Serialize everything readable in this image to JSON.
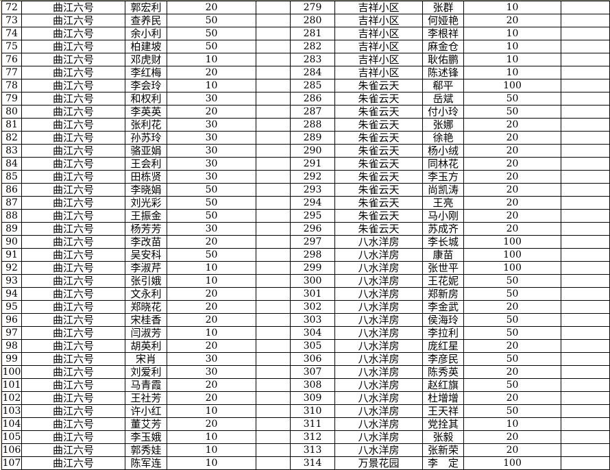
{
  "colors": {
    "grid_line": "#000000",
    "background": "#ffffff",
    "left_margin_strip": "#eeeadb",
    "top_edge_line": "#8f8f7c",
    "text": "#000000"
  },
  "rows": [
    {
      "left": {
        "no": "72",
        "community": "曲江六号",
        "name": "郭宏利",
        "amount": "20"
      },
      "right": {
        "no": "279",
        "community": "吉祥小区",
        "name": "张群",
        "amount": "10"
      }
    },
    {
      "left": {
        "no": "73",
        "community": "曲江六号",
        "name": "查养民",
        "amount": "50"
      },
      "right": {
        "no": "280",
        "community": "吉祥小区",
        "name": "何娅艳",
        "amount": "20"
      }
    },
    {
      "left": {
        "no": "74",
        "community": "曲江六号",
        "name": "余小利",
        "amount": "50"
      },
      "right": {
        "no": "281",
        "community": "吉祥小区",
        "name": "李根祥",
        "amount": "10"
      }
    },
    {
      "left": {
        "no": "75",
        "community": "曲江六号",
        "name": "柏建坡",
        "amount": "50"
      },
      "right": {
        "no": "282",
        "community": "吉祥小区",
        "name": "麻金仓",
        "amount": "10"
      }
    },
    {
      "left": {
        "no": "76",
        "community": "曲江六号",
        "name": "邓虎财",
        "amount": "10"
      },
      "right": {
        "no": "283",
        "community": "吉祥小区",
        "name": "耿佑鹏",
        "amount": "10"
      }
    },
    {
      "left": {
        "no": "77",
        "community": "曲江六号",
        "name": "李红梅",
        "amount": "20"
      },
      "right": {
        "no": "284",
        "community": "吉祥小区",
        "name": "陈述锋",
        "amount": "10"
      }
    },
    {
      "left": {
        "no": "78",
        "community": "曲江六号",
        "name": "李会玲",
        "amount": "10"
      },
      "right": {
        "no": "285",
        "community": "朱雀云天",
        "name": "郗平",
        "amount": "100"
      }
    },
    {
      "left": {
        "no": "79",
        "community": "曲江六号",
        "name": "和权利",
        "amount": "30"
      },
      "right": {
        "no": "286",
        "community": "朱雀云天",
        "name": "岳斌",
        "amount": "50"
      }
    },
    {
      "left": {
        "no": "80",
        "community": "曲江六号",
        "name": "李英英",
        "amount": "20"
      },
      "right": {
        "no": "287",
        "community": "朱雀云天",
        "name": "付小玲",
        "amount": "50"
      }
    },
    {
      "left": {
        "no": "81",
        "community": "曲江六号",
        "name": "张利花",
        "amount": "30"
      },
      "right": {
        "no": "288",
        "community": "朱雀云天",
        "name": "张娜",
        "amount": "20"
      }
    },
    {
      "left": {
        "no": "82",
        "community": "曲江六号",
        "name": "孙苏玲",
        "amount": "30"
      },
      "right": {
        "no": "289",
        "community": "朱雀云天",
        "name": "徐艳",
        "amount": "20"
      }
    },
    {
      "left": {
        "no": "83",
        "community": "曲江六号",
        "name": "骆亚娟",
        "amount": "30"
      },
      "right": {
        "no": "290",
        "community": "朱雀云天",
        "name": "杨小绒",
        "amount": "20"
      }
    },
    {
      "left": {
        "no": "84",
        "community": "曲江六号",
        "name": "王会利",
        "amount": "30"
      },
      "right": {
        "no": "291",
        "community": "朱雀云天",
        "name": "同林花",
        "amount": "20"
      }
    },
    {
      "left": {
        "no": "85",
        "community": "曲江六号",
        "name": "田栋贤",
        "amount": "30"
      },
      "right": {
        "no": "292",
        "community": "朱雀云天",
        "name": "李玉方",
        "amount": "20"
      }
    },
    {
      "left": {
        "no": "86",
        "community": "曲江六号",
        "name": "李晓娟",
        "amount": "50"
      },
      "right": {
        "no": "293",
        "community": "朱雀云天",
        "name": "尚凯涛",
        "amount": "20"
      }
    },
    {
      "left": {
        "no": "87",
        "community": "曲江六号",
        "name": "刘光彩",
        "amount": "50"
      },
      "right": {
        "no": "294",
        "community": "朱雀云天",
        "name": "王亮",
        "amount": "20"
      }
    },
    {
      "left": {
        "no": "88",
        "community": "曲江六号",
        "name": "王振金",
        "amount": "50"
      },
      "right": {
        "no": "295",
        "community": "朱雀云天",
        "name": "马小刚",
        "amount": "20"
      }
    },
    {
      "left": {
        "no": "89",
        "community": "曲江六号",
        "name": "杨芳芳",
        "amount": "30"
      },
      "right": {
        "no": "296",
        "community": "朱雀云天",
        "name": "苏成齐",
        "amount": "20"
      }
    },
    {
      "left": {
        "no": "90",
        "community": "曲江六号",
        "name": "李改苗",
        "amount": "20"
      },
      "right": {
        "no": "297",
        "community": "八水洋房",
        "name": "李长城",
        "amount": "100"
      }
    },
    {
      "left": {
        "no": "91",
        "community": "曲江六号",
        "name": "吴安科",
        "amount": "50"
      },
      "right": {
        "no": "298",
        "community": "八水洋房",
        "name": "康苗",
        "amount": "100"
      }
    },
    {
      "left": {
        "no": "92",
        "community": "曲江六号",
        "name": "李淑芹",
        "amount": "10"
      },
      "right": {
        "no": "299",
        "community": "八水洋房",
        "name": "张世平",
        "amount": "100"
      }
    },
    {
      "left": {
        "no": "93",
        "community": "曲江六号",
        "name": "张引娥",
        "amount": "10"
      },
      "right": {
        "no": "300",
        "community": "八水洋房",
        "name": "王花妮",
        "amount": "50"
      }
    },
    {
      "left": {
        "no": "94",
        "community": "曲江六号",
        "name": "文永利",
        "amount": "20"
      },
      "right": {
        "no": "301",
        "community": "八水洋房",
        "name": "郑新房",
        "amount": "50"
      }
    },
    {
      "left": {
        "no": "95",
        "community": "曲江六号",
        "name": "郑晓花",
        "amount": "20"
      },
      "right": {
        "no": "302",
        "community": "八水洋房",
        "name": "李金武",
        "amount": "20"
      }
    },
    {
      "left": {
        "no": "96",
        "community": "曲江六号",
        "name": "宋桂香",
        "amount": "20"
      },
      "right": {
        "no": "303",
        "community": "八水洋房",
        "name": "侯海玲",
        "amount": "50"
      }
    },
    {
      "left": {
        "no": "97",
        "community": "曲江六号",
        "name": "闫淑芳",
        "amount": "10"
      },
      "right": {
        "no": "304",
        "community": "八水洋房",
        "name": "李拉利",
        "amount": "50"
      }
    },
    {
      "left": {
        "no": "98",
        "community": "曲江六号",
        "name": "胡英利",
        "amount": "20"
      },
      "right": {
        "no": "305",
        "community": "八水洋房",
        "name": "庞红星",
        "amount": "20"
      }
    },
    {
      "left": {
        "no": "99",
        "community": "曲江六号",
        "name": "宋肖",
        "amount": "30"
      },
      "right": {
        "no": "306",
        "community": "八水洋房",
        "name": "李彦民",
        "amount": "50"
      }
    },
    {
      "left": {
        "no": "100",
        "community": "曲江六号",
        "name": "刘爱利",
        "amount": "30"
      },
      "right": {
        "no": "307",
        "community": "八水洋房",
        "name": "陈秀英",
        "amount": "20"
      }
    },
    {
      "left": {
        "no": "101",
        "community": "曲江六号",
        "name": "马青霞",
        "amount": "20"
      },
      "right": {
        "no": "308",
        "community": "八水洋房",
        "name": "赵红旗",
        "amount": "50"
      }
    },
    {
      "left": {
        "no": "102",
        "community": "曲江六号",
        "name": "王社芳",
        "amount": "20"
      },
      "right": {
        "no": "309",
        "community": "八水洋房",
        "name": "杜增增",
        "amount": "20"
      }
    },
    {
      "left": {
        "no": "103",
        "community": "曲江六号",
        "name": "许小红",
        "amount": "10"
      },
      "right": {
        "no": "310",
        "community": "八水洋房",
        "name": "王天祥",
        "amount": "50"
      }
    },
    {
      "left": {
        "no": "104",
        "community": "曲江六号",
        "name": "董艾芳",
        "amount": "20"
      },
      "right": {
        "no": "311",
        "community": "八水洋房",
        "name": "党拴其",
        "amount": "10"
      }
    },
    {
      "left": {
        "no": "105",
        "community": "曲江六号",
        "name": "李玉娥",
        "amount": "10"
      },
      "right": {
        "no": "312",
        "community": "八水洋房",
        "name": "张毅",
        "amount": "20"
      }
    },
    {
      "left": {
        "no": "106",
        "community": "曲江六号",
        "name": "郭秀娃",
        "amount": "10"
      },
      "right": {
        "no": "313",
        "community": "八水洋房",
        "name": "张新荣",
        "amount": "20"
      }
    },
    {
      "left": {
        "no": "107",
        "community": "曲江六号",
        "name": "陈军连",
        "amount": "10"
      },
      "right": {
        "no": "314",
        "community": "万景花园",
        "name": "李　定",
        "amount": "100"
      }
    }
  ]
}
